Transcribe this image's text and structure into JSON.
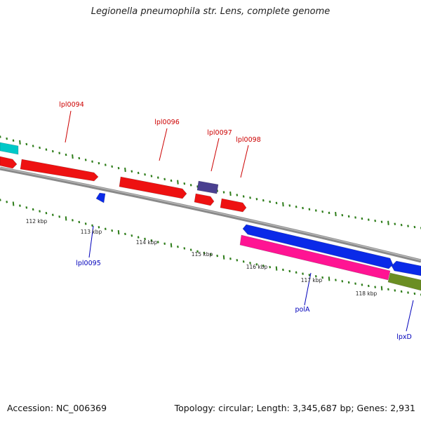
{
  "title": "Legionella pneumophila str. Lens, complete genome",
  "footer": {
    "accession": "Accession: NC_006369",
    "summary": "Topology: circular; Length: 3,345,687 bp; Genes: 2,931"
  },
  "colors": {
    "backbone": "#8a8a8a",
    "tick": "#2e7d1a",
    "forward_label": "#cc0000",
    "reverse_label": "#0000bb"
  },
  "scale_labels": [
    "112 kbp",
    "113 kbp",
    "114 kbp",
    "115 kbp",
    "116 kbp",
    "117 kbp",
    "118 kbp"
  ],
  "genes": [
    {
      "name": "",
      "color": "#00c8c8"
    },
    {
      "name": "",
      "color": "#ee1111"
    },
    {
      "name": "lpl0094",
      "color": "#ee1111"
    },
    {
      "name": "lpl0095",
      "color": "#0a2ae8"
    },
    {
      "name": "lpl0096",
      "color": "#ee1111"
    },
    {
      "name": "lpl0097",
      "color": "#4a4090"
    },
    {
      "name": "",
      "color": "#ee1111"
    },
    {
      "name": "lpl0098",
      "color": "#ee1111"
    },
    {
      "name": "",
      "color": "#0a2ae8"
    },
    {
      "name": "polA",
      "color": "#ff1493"
    },
    {
      "name": "",
      "color": "#0a2ae8"
    },
    {
      "name": "lpxD",
      "color": "#6b8e23"
    }
  ],
  "gene_labels": [
    {
      "text": "lpl0094",
      "color": "#cc0000"
    },
    {
      "text": "lpl0096",
      "color": "#cc0000"
    },
    {
      "text": "lpl0097",
      "color": "#cc0000"
    },
    {
      "text": "lpl0098",
      "color": "#cc0000"
    },
    {
      "text": "lpl0095",
      "color": "#0000bb"
    },
    {
      "text": "polA",
      "color": "#0000bb"
    },
    {
      "text": "lpxD",
      "color": "#0000bb"
    }
  ]
}
